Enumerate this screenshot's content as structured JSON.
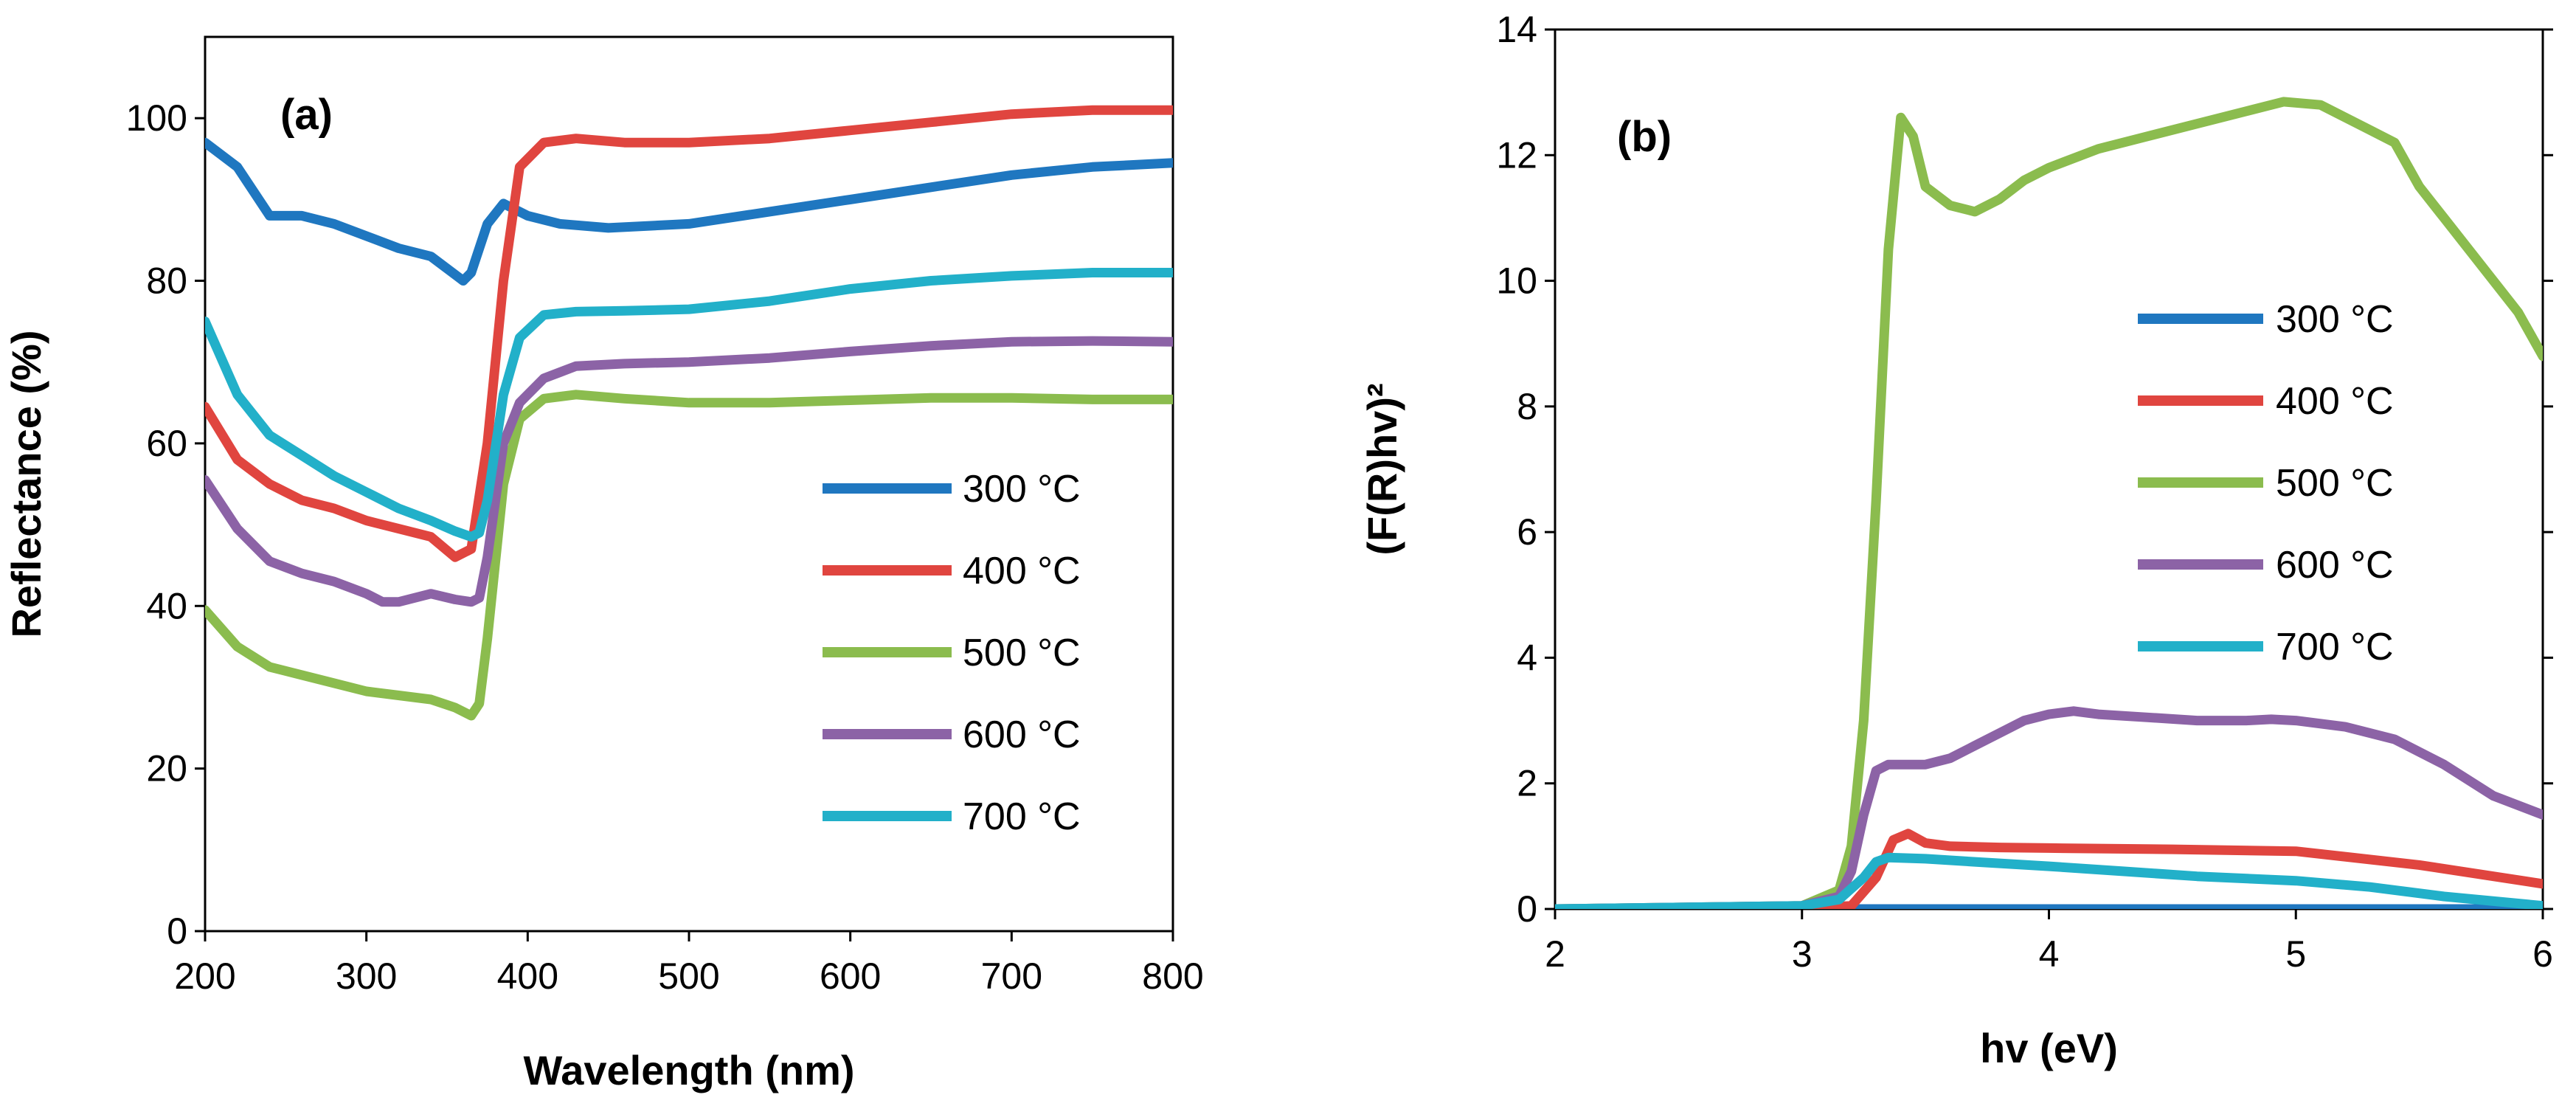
{
  "chart_data": [
    {
      "type": "line",
      "panel_label": "(a)",
      "xlabel": "Wavelength (nm)",
      "ylabel": "Reflectance (%)",
      "xlim": [
        200,
        800
      ],
      "ylim": [
        0,
        110
      ],
      "xticks": [
        200,
        300,
        400,
        500,
        600,
        700,
        800
      ],
      "yticks": [
        0,
        20,
        40,
        60,
        80,
        100
      ],
      "grid": false,
      "legend_position": "right-middle",
      "series": [
        {
          "name": "300 °C",
          "color": "#1f77c0",
          "x": [
            200,
            220,
            240,
            260,
            280,
            300,
            320,
            340,
            360,
            365,
            375,
            385,
            400,
            420,
            450,
            500,
            550,
            600,
            650,
            700,
            750,
            800
          ],
          "y": [
            97,
            94,
            88,
            88,
            87,
            85.5,
            84,
            83,
            80,
            81,
            87,
            89.5,
            88,
            87,
            86.5,
            87,
            88.5,
            90,
            91.5,
            93,
            94,
            94.5
          ]
        },
        {
          "name": "400 °C",
          "color": "#e0453f",
          "x": [
            200,
            220,
            240,
            260,
            280,
            300,
            320,
            340,
            355,
            365,
            375,
            385,
            395,
            410,
            430,
            460,
            500,
            550,
            600,
            650,
            700,
            750,
            800
          ],
          "y": [
            64.5,
            58,
            55,
            53,
            52,
            50.5,
            49.5,
            48.5,
            46,
            47,
            60,
            80,
            94,
            97,
            97.5,
            97,
            97,
            97.5,
            98.5,
            99.5,
            100.5,
            101,
            101
          ]
        },
        {
          "name": "500 °C",
          "color": "#8bbc4e",
          "x": [
            200,
            220,
            240,
            260,
            280,
            300,
            320,
            340,
            355,
            365,
            370,
            375,
            385,
            395,
            410,
            430,
            460,
            500,
            550,
            600,
            650,
            700,
            750,
            800
          ],
          "y": [
            39.5,
            35,
            32.5,
            31.5,
            30.5,
            29.5,
            29,
            28.5,
            27.5,
            26.5,
            28,
            36,
            55,
            63,
            65.5,
            66,
            65.5,
            65,
            65,
            65.3,
            65.6,
            65.6,
            65.4,
            65.4
          ]
        },
        {
          "name": "600 °C",
          "color": "#8c63a6",
          "x": [
            200,
            220,
            240,
            260,
            280,
            300,
            310,
            320,
            340,
            355,
            365,
            370,
            375,
            385,
            395,
            410,
            430,
            460,
            500,
            550,
            600,
            650,
            700,
            750,
            800
          ],
          "y": [
            55.5,
            49.5,
            45.5,
            44,
            43,
            41.5,
            40.5,
            40.5,
            41.5,
            40.8,
            40.5,
            41,
            46,
            60,
            65,
            68,
            69.5,
            69.8,
            70,
            70.5,
            71.3,
            72,
            72.5,
            72.6,
            72.5
          ]
        },
        {
          "name": "700 °C",
          "color": "#22b0c9",
          "x": [
            200,
            220,
            240,
            260,
            280,
            300,
            320,
            340,
            355,
            365,
            370,
            375,
            385,
            395,
            410,
            430,
            460,
            500,
            550,
            600,
            650,
            700,
            750,
            800
          ],
          "y": [
            75,
            66,
            61,
            58.5,
            56,
            54,
            52,
            50.5,
            49.2,
            48.5,
            49,
            53,
            66,
            73,
            75.8,
            76.2,
            76.3,
            76.5,
            77.5,
            79,
            80,
            80.6,
            81,
            81
          ]
        }
      ]
    },
    {
      "type": "line",
      "panel_label": "(b)",
      "xlabel": "hv (eV)",
      "ylabel": "(F(R)hv)²",
      "xlim": [
        2,
        6
      ],
      "ylim": [
        0,
        14
      ],
      "xticks": [
        2,
        3,
        4,
        5,
        6
      ],
      "yticks": [
        0,
        2,
        4,
        6,
        8,
        10,
        12,
        14
      ],
      "grid": false,
      "legend_position": "right-upper",
      "series": [
        {
          "name": "300 °C",
          "color": "#1f77c0",
          "x": [
            2,
            3,
            4,
            5,
            6
          ],
          "y": [
            0,
            0,
            0,
            0,
            0
          ]
        },
        {
          "name": "400 °C",
          "color": "#e0453f",
          "x": [
            2,
            3.0,
            3.2,
            3.3,
            3.37,
            3.43,
            3.5,
            3.6,
            3.8,
            4.0,
            4.5,
            5.0,
            5.5,
            6.0
          ],
          "y": [
            0,
            0.01,
            0.05,
            0.5,
            1.1,
            1.2,
            1.05,
            1.0,
            0.98,
            0.97,
            0.95,
            0.92,
            0.7,
            0.4
          ]
        },
        {
          "name": "500 °C",
          "color": "#8bbc4e",
          "x": [
            2,
            3.0,
            3.15,
            3.2,
            3.25,
            3.3,
            3.35,
            3.4,
            3.45,
            3.5,
            3.6,
            3.7,
            3.8,
            3.9,
            4.0,
            4.2,
            4.4,
            4.6,
            4.8,
            4.95,
            5.1,
            5.2,
            5.3,
            5.4,
            5.5,
            5.6,
            5.7,
            5.8,
            5.9,
            6.0
          ],
          "y": [
            0,
            0.05,
            0.3,
            1.0,
            3.0,
            6.5,
            10.5,
            12.6,
            12.3,
            11.5,
            11.2,
            11.1,
            11.3,
            11.6,
            11.8,
            12.1,
            12.3,
            12.5,
            12.7,
            12.85,
            12.8,
            12.6,
            12.4,
            12.2,
            11.5,
            11.0,
            10.5,
            10.0,
            9.5,
            8.8
          ]
        },
        {
          "name": "600 °C",
          "color": "#8c63a6",
          "x": [
            2,
            3.0,
            3.15,
            3.2,
            3.25,
            3.3,
            3.35,
            3.5,
            3.6,
            3.7,
            3.8,
            3.9,
            4.0,
            4.1,
            4.2,
            4.4,
            4.6,
            4.8,
            4.9,
            5.0,
            5.2,
            5.4,
            5.6,
            5.8,
            6.0
          ],
          "y": [
            0,
            0.05,
            0.2,
            0.6,
            1.5,
            2.2,
            2.3,
            2.3,
            2.4,
            2.6,
            2.8,
            3.0,
            3.1,
            3.15,
            3.1,
            3.05,
            3.0,
            3.0,
            3.02,
            3.0,
            2.9,
            2.7,
            2.3,
            1.8,
            1.5
          ]
        },
        {
          "name": "700 °C",
          "color": "#22b0c9",
          "x": [
            2,
            3.0,
            3.15,
            3.25,
            3.3,
            3.35,
            3.5,
            3.7,
            4.0,
            4.3,
            4.6,
            5.0,
            5.3,
            5.6,
            6.0
          ],
          "y": [
            0,
            0.05,
            0.15,
            0.5,
            0.75,
            0.82,
            0.8,
            0.75,
            0.68,
            0.6,
            0.52,
            0.45,
            0.35,
            0.2,
            0.05
          ]
        }
      ]
    }
  ]
}
